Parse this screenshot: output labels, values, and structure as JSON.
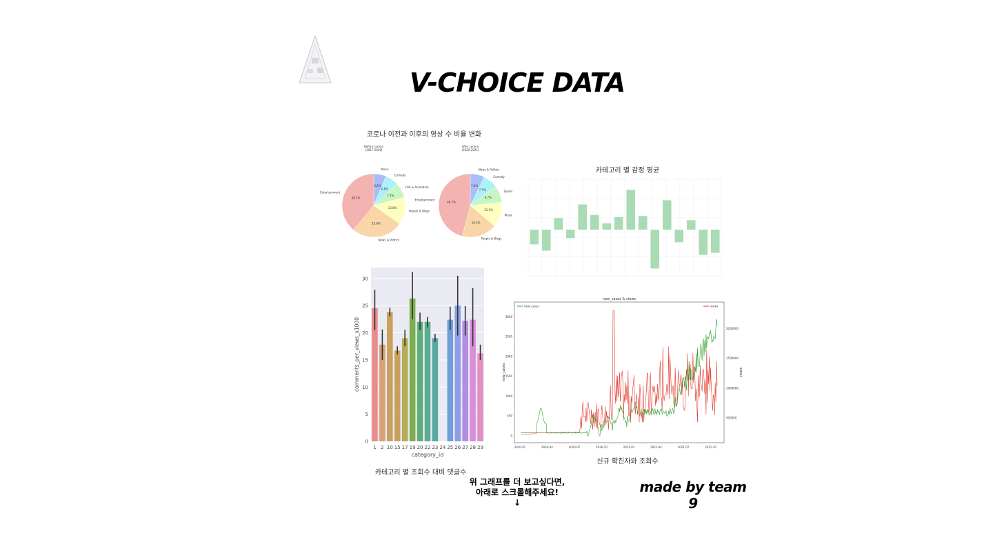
{
  "page": {
    "title": "V-CHOICE DATA",
    "hint_line1": "위 그래프를 더 보고싶다면,",
    "hint_line2": "아래로 스크롤해주세요!",
    "hint_arrow": "↓",
    "credit": "made by team 9"
  },
  "colors": {
    "pastel": [
      "#aabdf5",
      "#aef0f7",
      "#c6f7c2",
      "#fefebf",
      "#f8d6a8",
      "#f2b3b1"
    ],
    "sentiment_bar": "#a9dbb4",
    "green_line": "#2ca02c",
    "red_line": "#e03a2f"
  },
  "chart_data": [
    {
      "type": "pie",
      "title": "코로나 이전과 이후의 영상 수 비율 변화",
      "subtitle": "Before corona\n(2017-2018)",
      "labels": [
        "Music",
        "Comedy",
        "Film & Animation",
        "People & Blogs",
        "News & Politics",
        "Entertainment"
      ],
      "values": [
        6.2,
        6.8,
        7.4,
        13.8,
        25.6,
        38.2
      ],
      "pct_labels": [
        "6.2%",
        "6.8%",
        "7.4%",
        "13.8%",
        "25.6%",
        "38.2%"
      ]
    },
    {
      "type": "pie",
      "subtitle": "After corona\n(2020-2021)",
      "labels": [
        "News & Politics",
        "Comedy",
        "Sports",
        "Music",
        "People & Blogs",
        "Entertainment"
      ],
      "values": [
        7.4,
        7.7,
        8.7,
        13.1,
        18.2,
        46.7
      ],
      "pct_labels": [
        "7.4%",
        "7.7%",
        "8.7%",
        "13.1%",
        "18.2%",
        "46.7%"
      ]
    },
    {
      "type": "bar",
      "title": "카테고리 별 감정 평균",
      "values": [
        -0.7,
        -1.0,
        0.55,
        -0.4,
        1.2,
        0.7,
        0.3,
        0.6,
        1.9,
        0.65,
        -1.85,
        1.4,
        -0.6,
        0.45,
        -1.2,
        -1.1
      ],
      "ylim": [
        -2.2,
        2.4
      ],
      "grid": true
    },
    {
      "type": "bar",
      "xlabel": "category_id",
      "ylabel": "comments_per_views_x1000",
      "caption": "카테고리 별 조회수 대비 댓글수",
      "categories": [
        "1",
        "2",
        "10",
        "15",
        "17",
        "19",
        "20",
        "22",
        "23",
        "24",
        "25",
        "26",
        "27",
        "28",
        "29"
      ],
      "values": [
        24.5,
        17.8,
        23.8,
        16.7,
        19.0,
        26.3,
        22.0,
        22.0,
        19.0,
        0,
        22.4,
        25.0,
        22.2,
        22.4,
        16.2
      ],
      "err_low": [
        20.5,
        15.0,
        23.0,
        16.0,
        17.5,
        22.5,
        20.5,
        21.0,
        18.3,
        0,
        20.5,
        19.5,
        19.5,
        17.5,
        15.0
      ],
      "err_high": [
        27.9,
        20.6,
        24.6,
        17.5,
        20.5,
        31.2,
        23.7,
        22.9,
        19.8,
        0,
        24.8,
        30.5,
        24.9,
        28.2,
        17.8
      ],
      "yticks": [
        "0",
        "5",
        "10",
        "15",
        "20",
        "25",
        "30"
      ],
      "ylim": [
        0,
        32
      ]
    },
    {
      "type": "line",
      "title": "new_cases & views",
      "caption": "신규 확진자와 조회수",
      "ylabel": "new_cases",
      "ylabel_right": "views",
      "series": [
        {
          "name": "new_cases",
          "color": "#2ca02c"
        },
        {
          "name": "views",
          "color": "#e03a2f"
        }
      ],
      "yticks": [
        "0",
        "500",
        "1000",
        "1500",
        "2000",
        "2500",
        "3000"
      ],
      "yticks_right": [
        "500000",
        "1000000",
        "1500000",
        "2000000"
      ],
      "xticks": [
        "2020-01",
        "2020-04",
        "2020-07",
        "2020-10",
        "2021-01",
        "2021-04",
        "2021-07",
        "2021-10"
      ]
    }
  ]
}
